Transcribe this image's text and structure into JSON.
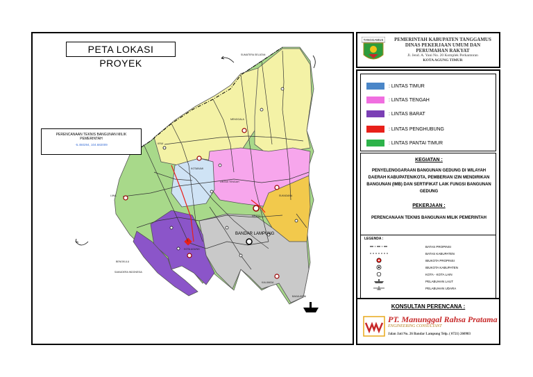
{
  "map": {
    "title": "PETA LOKASI PROYEK",
    "callout": {
      "line1": "PERENCANAAN TEKNIS BANGUNAN MILIK",
      "line2": "PEMERINTAH",
      "coord": "-5.450294, 104.682009"
    },
    "place_labels": {
      "bengkulu": "BENGKULU",
      "sumsel": "SUMATERA SELATAN",
      "krui": "KRUI",
      "liwa": "LIWA",
      "kotabumi": "KOTABUMI",
      "menggala": "MENGGALA",
      "metro": "METRO",
      "sukadana": "SUKADANA",
      "bandar_lampung": "BANDAR LAMPUNG",
      "kota_agung": "KOTA AGUNG",
      "kalianda": "KALIANDA",
      "samudera": "SAMUDERA INDONESIA",
      "bakauheni": "BAKAUHENI",
      "tengah": "LINTAS TENGAH"
    }
  },
  "header": {
    "logo_text": "TANGGAMUS",
    "line1": "PEMERINTAH KABUPATEN TANGGAMUS",
    "line2": "DINAS PEKERJAAN UMUM DAN",
    "line3": "PERUMAHAN RAKYAT",
    "address": "Jl. Jend. A. Yani No. 20 Komplek Perkantoran",
    "city": "KOTA AGUNG TIMUR"
  },
  "lintas": [
    {
      "label": ": LINTAS TIMUR",
      "color": "#4a86c8"
    },
    {
      "label": ": LINTAS TENGAH",
      "color": "#f06ee0"
    },
    {
      "label": ": LINTAS BARAT",
      "color": "#7b3fb5"
    },
    {
      "label": ": LINTAS PENGHUBUNG",
      "color": "#e8201a"
    },
    {
      "label": ": LINTAS PANTAI TIMUR",
      "color": "#2db34a"
    }
  ],
  "kegiatan": {
    "title": "KEGIATAN :",
    "body": "PENYELENGGARAAN BANGUNAN GEDUNG DI WILAYAH DAERAH KABUPATEN/KOTA, PEMBERIAN IZIN MENDIRIKAN BANGUNAN (IMB) DAN SERTIFIKAT LAIK FUNGSI BANGUNAN GEDUNG"
  },
  "pekerjaan": {
    "title": "PEKERJAAN :",
    "body": "PERENCANAAN TEKNIS BANGUNAN MILIK PEMERINTAH"
  },
  "legenda": {
    "title": "LEGENDA :",
    "items": [
      {
        "label": "BATAS PROPINSI"
      },
      {
        "label": "BATAS KABUPATEN"
      },
      {
        "label": "IBUKOTA PROPINSI"
      },
      {
        "label": "IBUKOTA KABUPATEN"
      },
      {
        "label": "KOTA - KOTA LAIN"
      },
      {
        "label": "PELABUHAN LAUT"
      },
      {
        "label": "PELABUHAN UDARA"
      }
    ]
  },
  "konsultan": {
    "title": "KONSULTAN PERENCANA :",
    "name": "PT. Manunggal Rahsa Pratama",
    "subtitle": "ENGINEERING CONSULTANT",
    "address": "Jalan Jati No. 26 Bandar Lampung Telp. ( 0721) 260983"
  },
  "colors": {
    "lintas_timur_fill": "#cfe3f5",
    "lintas_tengah_fill": "#f7a6ec",
    "lintas_barat_fill": "#8b55c9",
    "yellow_region": "#f4f2a6",
    "green_region": "#a8d98a",
    "grey_region": "#c9c9c9",
    "orange_region": "#f2c94c"
  }
}
